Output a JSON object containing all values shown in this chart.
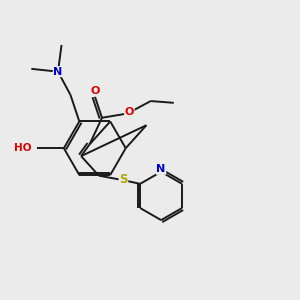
{
  "bg_color": "#ebebeb",
  "bond_color": "#1a1a1a",
  "colors": {
    "O": "#dd0000",
    "N": "#0000cc",
    "S": "#aaaa00",
    "C": "#1a1a1a",
    "H": "#666666"
  }
}
